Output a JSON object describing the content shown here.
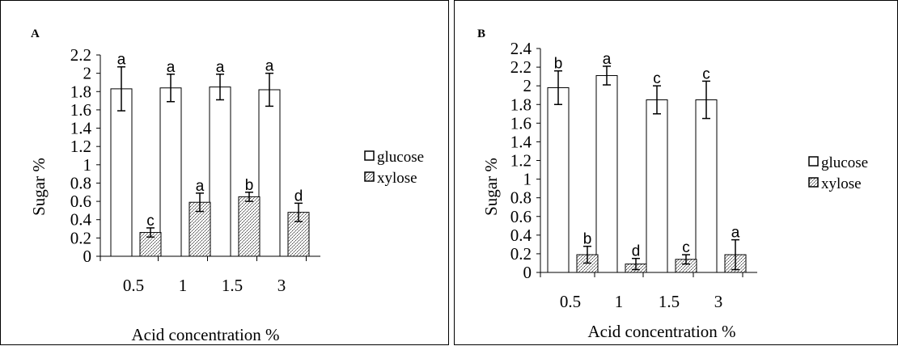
{
  "chart_data": [
    {
      "type": "bar",
      "panel_label": "A",
      "categories": [
        "0.5",
        "1",
        "1.5",
        "3"
      ],
      "series": [
        {
          "name": "glucose",
          "values": [
            1.83,
            1.84,
            1.85,
            1.82
          ],
          "errors": [
            0.24,
            0.15,
            0.14,
            0.18
          ],
          "letters": [
            "a",
            "a",
            "a",
            "a"
          ]
        },
        {
          "name": "xylose",
          "values": [
            0.26,
            0.59,
            0.65,
            0.48
          ],
          "errors": [
            0.05,
            0.1,
            0.05,
            0.1
          ],
          "letters": [
            "c",
            "a",
            "b",
            "d"
          ]
        }
      ],
      "xlabel": "Acid concentration %",
      "ylabel": "Sugar %",
      "ylim": [
        0,
        2.2
      ],
      "yticks": [
        "0",
        "0.2",
        "0.4",
        "0.6",
        "0.8",
        "1",
        "1.2",
        "1.4",
        "1.6",
        "1.8",
        "2",
        "2.2"
      ],
      "legend_position": "right",
      "grid": false
    },
    {
      "type": "bar",
      "panel_label": "B",
      "categories": [
        "0.5",
        "1",
        "1.5",
        "3"
      ],
      "series": [
        {
          "name": "glucose",
          "values": [
            1.98,
            2.11,
            1.85,
            1.85
          ],
          "errors": [
            0.18,
            0.1,
            0.15,
            0.2
          ],
          "letters": [
            "b",
            "a",
            "c",
            "c"
          ]
        },
        {
          "name": "xylose",
          "values": [
            0.19,
            0.09,
            0.14,
            0.19
          ],
          "errors": [
            0.09,
            0.06,
            0.05,
            0.16
          ],
          "letters": [
            "b",
            "d",
            "c",
            "a"
          ]
        }
      ],
      "xlabel": "Acid concentration %",
      "ylabel": "Sugar %",
      "ylim": [
        0,
        2.4
      ],
      "yticks": [
        "0",
        "0.2",
        "0.4",
        "0.6",
        "0.8",
        "1",
        "1.2",
        "1.4",
        "1.6",
        "1.8",
        "2",
        "2.2",
        "2.4"
      ],
      "legend_position": "right",
      "grid": false
    }
  ]
}
